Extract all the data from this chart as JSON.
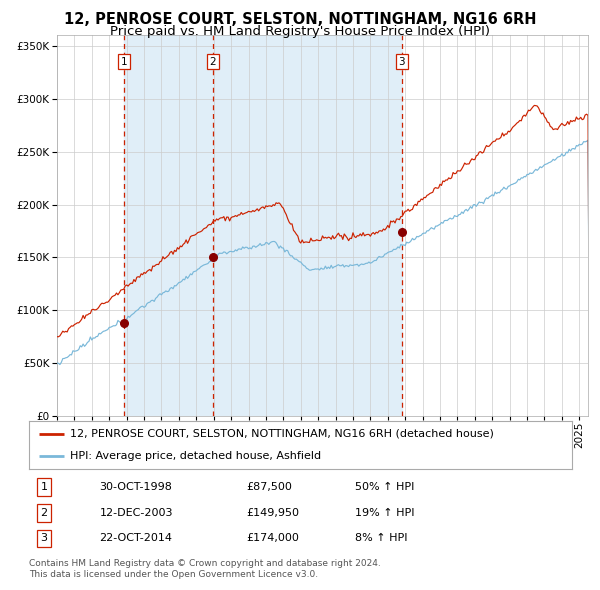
{
  "title": "12, PENROSE COURT, SELSTON, NOTTINGHAM, NG16 6RH",
  "subtitle": "Price paid vs. HM Land Registry's House Price Index (HPI)",
  "sale_dates_num": [
    1998.83,
    2003.94,
    2014.81
  ],
  "sale_prices": [
    87500,
    149950,
    174000
  ],
  "sale_labels": [
    "1",
    "2",
    "3"
  ],
  "sale_date_strs": [
    "30-OCT-1998",
    "12-DEC-2003",
    "22-OCT-2014"
  ],
  "sale_price_strs": [
    "£87,500",
    "£149,950",
    "£174,000"
  ],
  "sale_hpi_strs": [
    "50% ↑ HPI",
    "19% ↑ HPI",
    "8% ↑ HPI"
  ],
  "legend_line1": "12, PENROSE COURT, SELSTON, NOTTINGHAM, NG16 6RH (detached house)",
  "legend_line2": "HPI: Average price, detached house, Ashfield",
  "footer": "Contains HM Land Registry data © Crown copyright and database right 2024.\nThis data is licensed under the Open Government Licence v3.0.",
  "ylim": [
    0,
    360000
  ],
  "xlim_start": 1995.0,
  "xlim_end": 2025.5,
  "hpi_color": "#7ab8d9",
  "price_color": "#cc2200",
  "sale_dot_color": "#880000",
  "dashed_line_color": "#cc2200",
  "shade_color": "#e0eef8",
  "background_color": "#ffffff",
  "grid_color": "#cccccc",
  "title_fontsize": 10.5,
  "subtitle_fontsize": 9.5,
  "tick_fontsize": 7.5,
  "legend_fontsize": 8,
  "footer_fontsize": 6.5
}
